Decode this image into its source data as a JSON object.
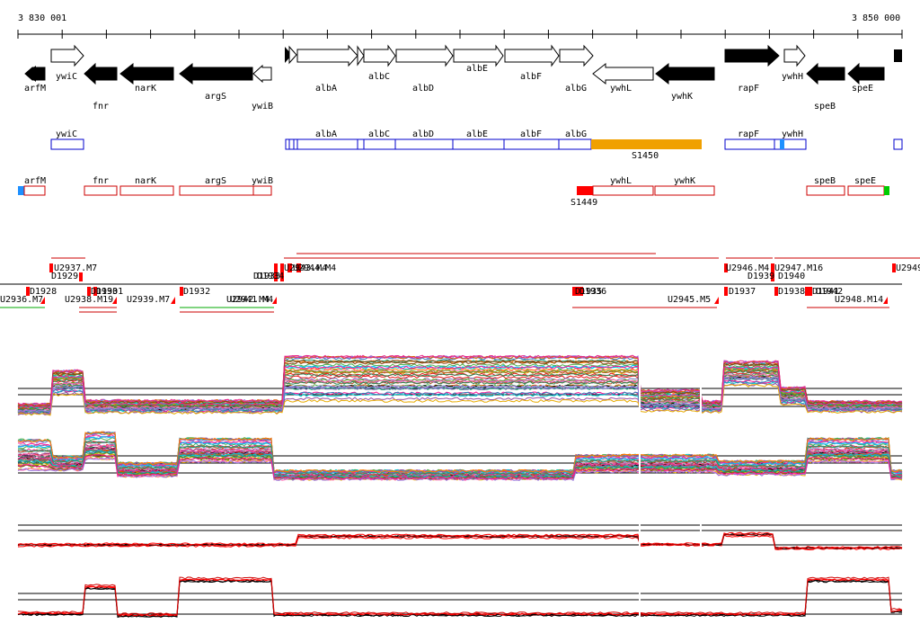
{
  "coords": {
    "left": "3 830 001",
    "right": "3 850 000"
  },
  "genes": [
    {
      "name": "arfM",
      "dir": "L",
      "fill": "black",
      "label_pos": "below"
    },
    {
      "name": "ywiC",
      "dir": "R",
      "fill": "white",
      "label_pos": "below"
    },
    {
      "name": "fnr",
      "dir": "L",
      "fill": "black",
      "label_pos": "below2"
    },
    {
      "name": "narK",
      "dir": "L",
      "fill": "black",
      "label_pos": "below"
    },
    {
      "name": "argS",
      "dir": "L",
      "fill": "black",
      "label_pos": "below"
    },
    {
      "name": "ywiB",
      "dir": "L",
      "fill": "white",
      "label_pos": "below2"
    },
    {
      "name": "albA",
      "dir": "R",
      "fill": "white",
      "label_pos": "below2"
    },
    {
      "name": "albC",
      "dir": "R",
      "fill": "white",
      "label_pos": "below"
    },
    {
      "name": "albD",
      "dir": "R",
      "fill": "white",
      "label_pos": "below2"
    },
    {
      "name": "albE",
      "dir": "R",
      "fill": "white",
      "label_pos": "above"
    },
    {
      "name": "albF",
      "dir": "R",
      "fill": "white",
      "label_pos": "below"
    },
    {
      "name": "albG",
      "dir": "R",
      "fill": "white",
      "label_pos": "below2"
    },
    {
      "name": "ywhL",
      "dir": "L",
      "fill": "white",
      "label_pos": "below2"
    },
    {
      "name": "ywhK",
      "dir": "L",
      "fill": "black",
      "label_pos": "below2"
    },
    {
      "name": "rapF",
      "dir": "R",
      "fill": "black",
      "label_pos": "below2"
    },
    {
      "name": "ywhH",
      "dir": "R",
      "fill": "white",
      "label_pos": "below"
    },
    {
      "name": "speB",
      "dir": "L",
      "fill": "black",
      "label_pos": "below2"
    },
    {
      "name": "speE",
      "dir": "L",
      "fill": "black",
      "label_pos": "below"
    }
  ],
  "plus_strand_units": [
    "ywiC",
    "albA",
    "albC",
    "albD",
    "albE",
    "albF",
    "albG",
    "rapF",
    "ywhH"
  ],
  "plus_strand_extra": {
    "label": "S1450",
    "color": "#f0a000"
  },
  "minus_strand_units": [
    "arfM",
    "fnr",
    "narK",
    "argS",
    "ywiB",
    "ywhL",
    "ywhK",
    "speB",
    "speE"
  ],
  "minus_strand_extra": {
    "label": "S1449",
    "color": "#ff0000"
  },
  "segment_labels": [
    "U2937.M7",
    "D1929",
    "D1928",
    "U2936.M7",
    "U2938.M19",
    "D1930",
    "D1931",
    "U2939.M7",
    "D1932",
    "U2942.M4",
    "U2941.M4",
    "D1933",
    "D1934",
    "U2943.M4",
    "U2944.M4",
    "D1935",
    "D1936",
    "U2945.M5",
    "U2946.M4",
    "D1937",
    "U2947.M16",
    "D1939",
    "D1940",
    "D1938",
    "D1941",
    "D1942",
    "U2948.M14",
    "U2949"
  ],
  "colors": {
    "gene_box": "#0000cc",
    "minus_box": "#cc0000",
    "terminator": "#ff0000",
    "green_mark": "#00cc00",
    "blue_mark": "#1e90ff"
  }
}
